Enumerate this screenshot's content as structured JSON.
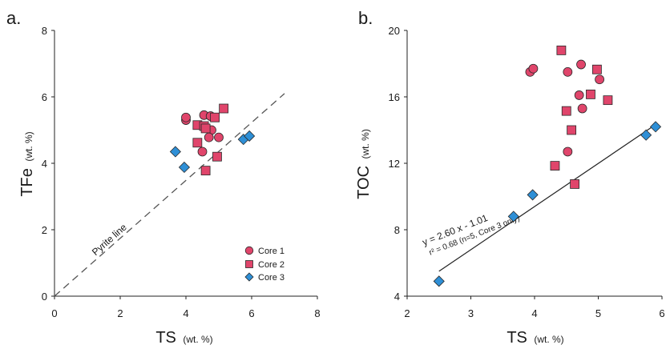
{
  "chart_data": [
    {
      "type": "scatter",
      "panel_label": "a.",
      "xlabel": "TS",
      "xlabel_unit": "(wt. %)",
      "ylabel": "TFe",
      "ylabel_unit": "(wt. %)",
      "xlim": [
        0,
        8
      ],
      "ylim": [
        0,
        8
      ],
      "xticks": [
        "0",
        "2",
        "4",
        "6",
        "8"
      ],
      "yticks": [
        "0",
        "2",
        "4",
        "6",
        "8"
      ],
      "grid": false,
      "legend_position": "bottom-right",
      "colors": {
        "core1": "#e0456b",
        "core2": "#e0456b",
        "core3": "#2e8fd6"
      },
      "series": [
        {
          "name": "Core 1",
          "marker": "circle",
          "points": [
            [
              4.0,
              5.3
            ],
            [
              4.0,
              5.38
            ],
            [
              4.55,
              5.45
            ],
            [
              4.75,
              5.42
            ],
            [
              4.78,
              5.0
            ],
            [
              4.7,
              4.78
            ],
            [
              5.0,
              4.78
            ],
            [
              4.5,
              4.35
            ]
          ]
        },
        {
          "name": "Core 2",
          "marker": "square",
          "points": [
            [
              4.35,
              5.15
            ],
            [
              4.55,
              5.12
            ],
            [
              4.88,
              5.38
            ],
            [
              5.15,
              5.65
            ],
            [
              4.6,
              5.05
            ],
            [
              4.35,
              4.62
            ],
            [
              4.95,
              4.2
            ],
            [
              4.6,
              3.78
            ]
          ]
        },
        {
          "name": "Core 3",
          "marker": "diamond",
          "points": [
            [
              3.68,
              4.35
            ],
            [
              3.95,
              3.88
            ],
            [
              5.75,
              4.72
            ],
            [
              5.93,
              4.82
            ]
          ]
        }
      ],
      "reference_line": {
        "label": "Pyrite line",
        "x": [
          0,
          7
        ],
        "y": [
          0,
          6.1
        ]
      }
    },
    {
      "type": "scatter",
      "panel_label": "b.",
      "xlabel": "TS",
      "xlabel_unit": "(wt. %)",
      "ylabel": "TOC",
      "ylabel_unit": "(wt. %)",
      "xlim": [
        2,
        6
      ],
      "ylim": [
        4,
        20
      ],
      "xticks": [
        "2",
        "3",
        "4",
        "5",
        "6"
      ],
      "yticks": [
        "4",
        "8",
        "12",
        "16",
        "20"
      ],
      "grid": false,
      "colors": {
        "core1": "#e0456b",
        "core2": "#e0456b",
        "core3": "#2e8fd6"
      },
      "series": [
        {
          "name": "Core 1",
          "marker": "circle",
          "points": [
            [
              3.93,
              17.5
            ],
            [
              3.98,
              17.7
            ],
            [
              4.73,
              17.95
            ],
            [
              4.52,
              17.5
            ],
            [
              5.02,
              17.05
            ],
            [
              4.7,
              16.1
            ],
            [
              4.75,
              15.3
            ],
            [
              4.52,
              12.7
            ]
          ]
        },
        {
          "name": "Core 2",
          "marker": "square",
          "points": [
            [
              4.42,
              18.8
            ],
            [
              4.98,
              17.65
            ],
            [
              4.88,
              16.15
            ],
            [
              5.15,
              15.8
            ],
            [
              4.5,
              15.15
            ],
            [
              4.58,
              14.0
            ],
            [
              4.32,
              11.85
            ],
            [
              4.63,
              10.75
            ]
          ]
        },
        {
          "name": "Core 3",
          "marker": "diamond",
          "points": [
            [
              2.5,
              4.9
            ],
            [
              3.67,
              8.8
            ],
            [
              3.97,
              10.1
            ],
            [
              5.75,
              13.7
            ],
            [
              5.9,
              14.2
            ]
          ]
        }
      ],
      "regression_line": {
        "x": [
          2.5,
          5.9
        ],
        "y": [
          5.5,
          14.33
        ],
        "equation": "y = 2.60 x - 1.01",
        "r2_text": "r² = 0.68 (n=5, Core 3 only)"
      }
    }
  ]
}
